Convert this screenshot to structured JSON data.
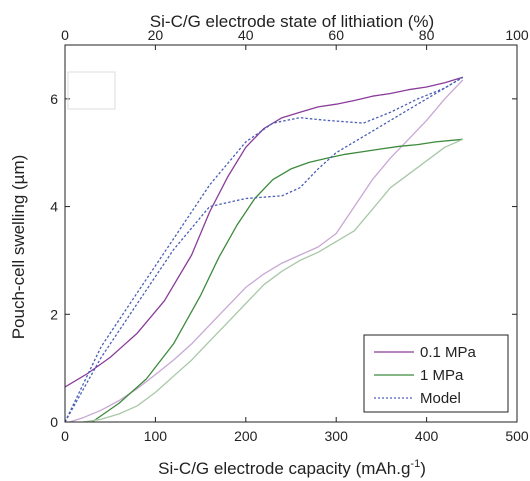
{
  "chart_data": {
    "type": "line",
    "title": "",
    "xlabel": "Si-C/G electrode capacity (mAh.g",
    "xlabel_sup": "-1",
    "xlabel_suffix": ")",
    "x2label": "Si-C/G electrode state of lithiation (%)",
    "ylabel": "Pouch-cell swelling (µm)",
    "xlim": [
      0,
      500
    ],
    "x2lim": [
      0,
      100
    ],
    "ylim": [
      0,
      7
    ],
    "xticks": [
      0,
      100,
      200,
      300,
      400,
      500
    ],
    "x2ticks": [
      0,
      20,
      40,
      60,
      80,
      100
    ],
    "yticks": [
      0,
      2,
      4,
      6
    ],
    "legend_position": "bottom-right",
    "series": [
      {
        "name": "0.1 MPa",
        "color": "#8a3c9a",
        "style": "solid",
        "x": [
          0,
          25,
          50,
          80,
          110,
          140,
          160,
          180,
          200,
          220,
          240,
          260,
          280,
          300,
          320,
          340,
          360,
          380,
          400,
          420,
          440
        ],
        "y": [
          0.65,
          0.9,
          1.2,
          1.65,
          2.25,
          3.1,
          3.9,
          4.55,
          5.1,
          5.45,
          5.65,
          5.75,
          5.85,
          5.9,
          5.97,
          6.05,
          6.1,
          6.17,
          6.22,
          6.3,
          6.4
        ]
      },
      {
        "name": "",
        "color": "#c8a8d4",
        "style": "solid",
        "x": [
          440,
          420,
          400,
          380,
          360,
          340,
          320,
          300,
          280,
          260,
          240,
          220,
          200,
          180,
          160,
          140,
          120,
          100,
          80,
          60,
          40,
          20,
          5
        ],
        "y": [
          6.35,
          6.0,
          5.6,
          5.25,
          4.9,
          4.5,
          4.0,
          3.5,
          3.25,
          3.1,
          2.95,
          2.75,
          2.5,
          2.15,
          1.8,
          1.45,
          1.15,
          0.88,
          0.62,
          0.4,
          0.22,
          0.08,
          0.0
        ]
      },
      {
        "name": "1 MPa",
        "color": "#3c8a3c",
        "style": "solid",
        "x": [
          30,
          60,
          90,
          120,
          150,
          170,
          190,
          210,
          230,
          250,
          270,
          290,
          310,
          330,
          350,
          370,
          390,
          410,
          440
        ],
        "y": [
          0.0,
          0.35,
          0.8,
          1.45,
          2.35,
          3.05,
          3.65,
          4.15,
          4.5,
          4.7,
          4.82,
          4.9,
          4.97,
          5.02,
          5.07,
          5.12,
          5.15,
          5.2,
          5.25
        ]
      },
      {
        "name": "",
        "color": "#a8c8a8",
        "style": "solid",
        "x": [
          440,
          420,
          400,
          380,
          360,
          340,
          320,
          300,
          280,
          260,
          240,
          220,
          200,
          180,
          160,
          140,
          120,
          100,
          80,
          60,
          40,
          20
        ],
        "y": [
          5.25,
          5.1,
          4.85,
          4.6,
          4.35,
          3.95,
          3.55,
          3.35,
          3.15,
          3.0,
          2.8,
          2.55,
          2.2,
          1.85,
          1.5,
          1.15,
          0.85,
          0.55,
          0.3,
          0.15,
          0.05,
          0.0
        ]
      },
      {
        "name": "Model",
        "color": "#4a5fb5",
        "style": "dashed",
        "x": [
          0,
          40,
          80,
          120,
          160,
          200,
          240,
          260,
          280,
          300,
          320,
          340,
          360,
          380,
          400,
          420,
          440
        ],
        "y": [
          0.0,
          1.2,
          2.2,
          3.2,
          4.0,
          4.15,
          4.2,
          4.35,
          4.7,
          5.0,
          5.2,
          5.4,
          5.6,
          5.8,
          6.0,
          6.2,
          6.4
        ]
      },
      {
        "name": "",
        "color": "#4a5fb5",
        "style": "dashed",
        "x": [
          0,
          40,
          80,
          120,
          160,
          200,
          230,
          260,
          290,
          330,
          360,
          390,
          420,
          440
        ],
        "y": [
          0.0,
          1.4,
          2.4,
          3.4,
          4.4,
          5.2,
          5.55,
          5.65,
          5.6,
          5.55,
          5.75,
          6.0,
          6.2,
          6.4
        ]
      }
    ]
  }
}
